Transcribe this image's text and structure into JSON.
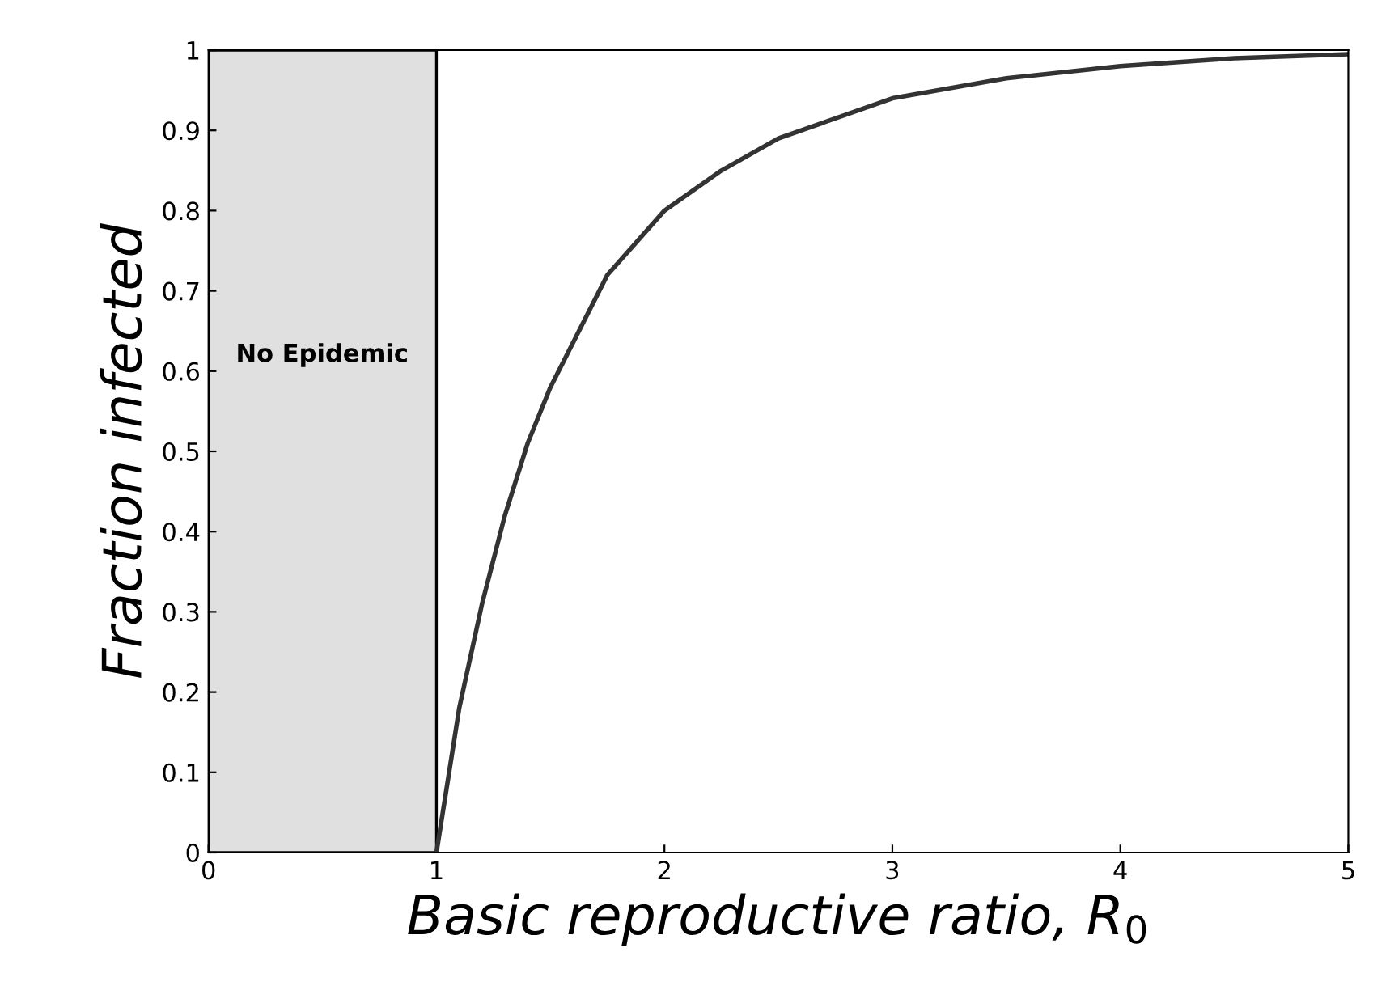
{
  "chart_data": {
    "type": "line",
    "xlabel": "Basic reproductive ratio, R$_{0}$",
    "ylabel": "Fraction infected",
    "x": [
      1,
      1.05,
      1.1,
      1.2,
      1.3,
      1.4,
      1.5,
      1.75,
      2,
      2.25,
      2.5,
      3,
      3.5,
      4,
      4.5,
      5
    ],
    "series": [
      {
        "color": "#333333",
        "values": [
          0,
          0.09,
          0.18,
          0.31,
          0.42,
          0.51,
          0.58,
          0.72,
          0.8,
          0.85,
          0.89,
          0.94,
          0.965,
          0.98,
          0.99,
          0.995
        ]
      }
    ],
    "xlim": [
      0,
      5
    ],
    "ylim": [
      0,
      1
    ],
    "xticks": [
      0,
      1,
      2,
      3,
      4,
      5
    ],
    "yticks": [
      0,
      0.1,
      0.2,
      0.3,
      0.4,
      0.5,
      0.6,
      0.7,
      0.8,
      0.9,
      1
    ],
    "bands": [
      {
        "axis": "x",
        "from": 0,
        "to": 1,
        "label": "No Epidemic",
        "color": "#e0e0e0"
      }
    ],
    "grid": false,
    "legend": false,
    "marker": "none",
    "line_style": "solid"
  }
}
